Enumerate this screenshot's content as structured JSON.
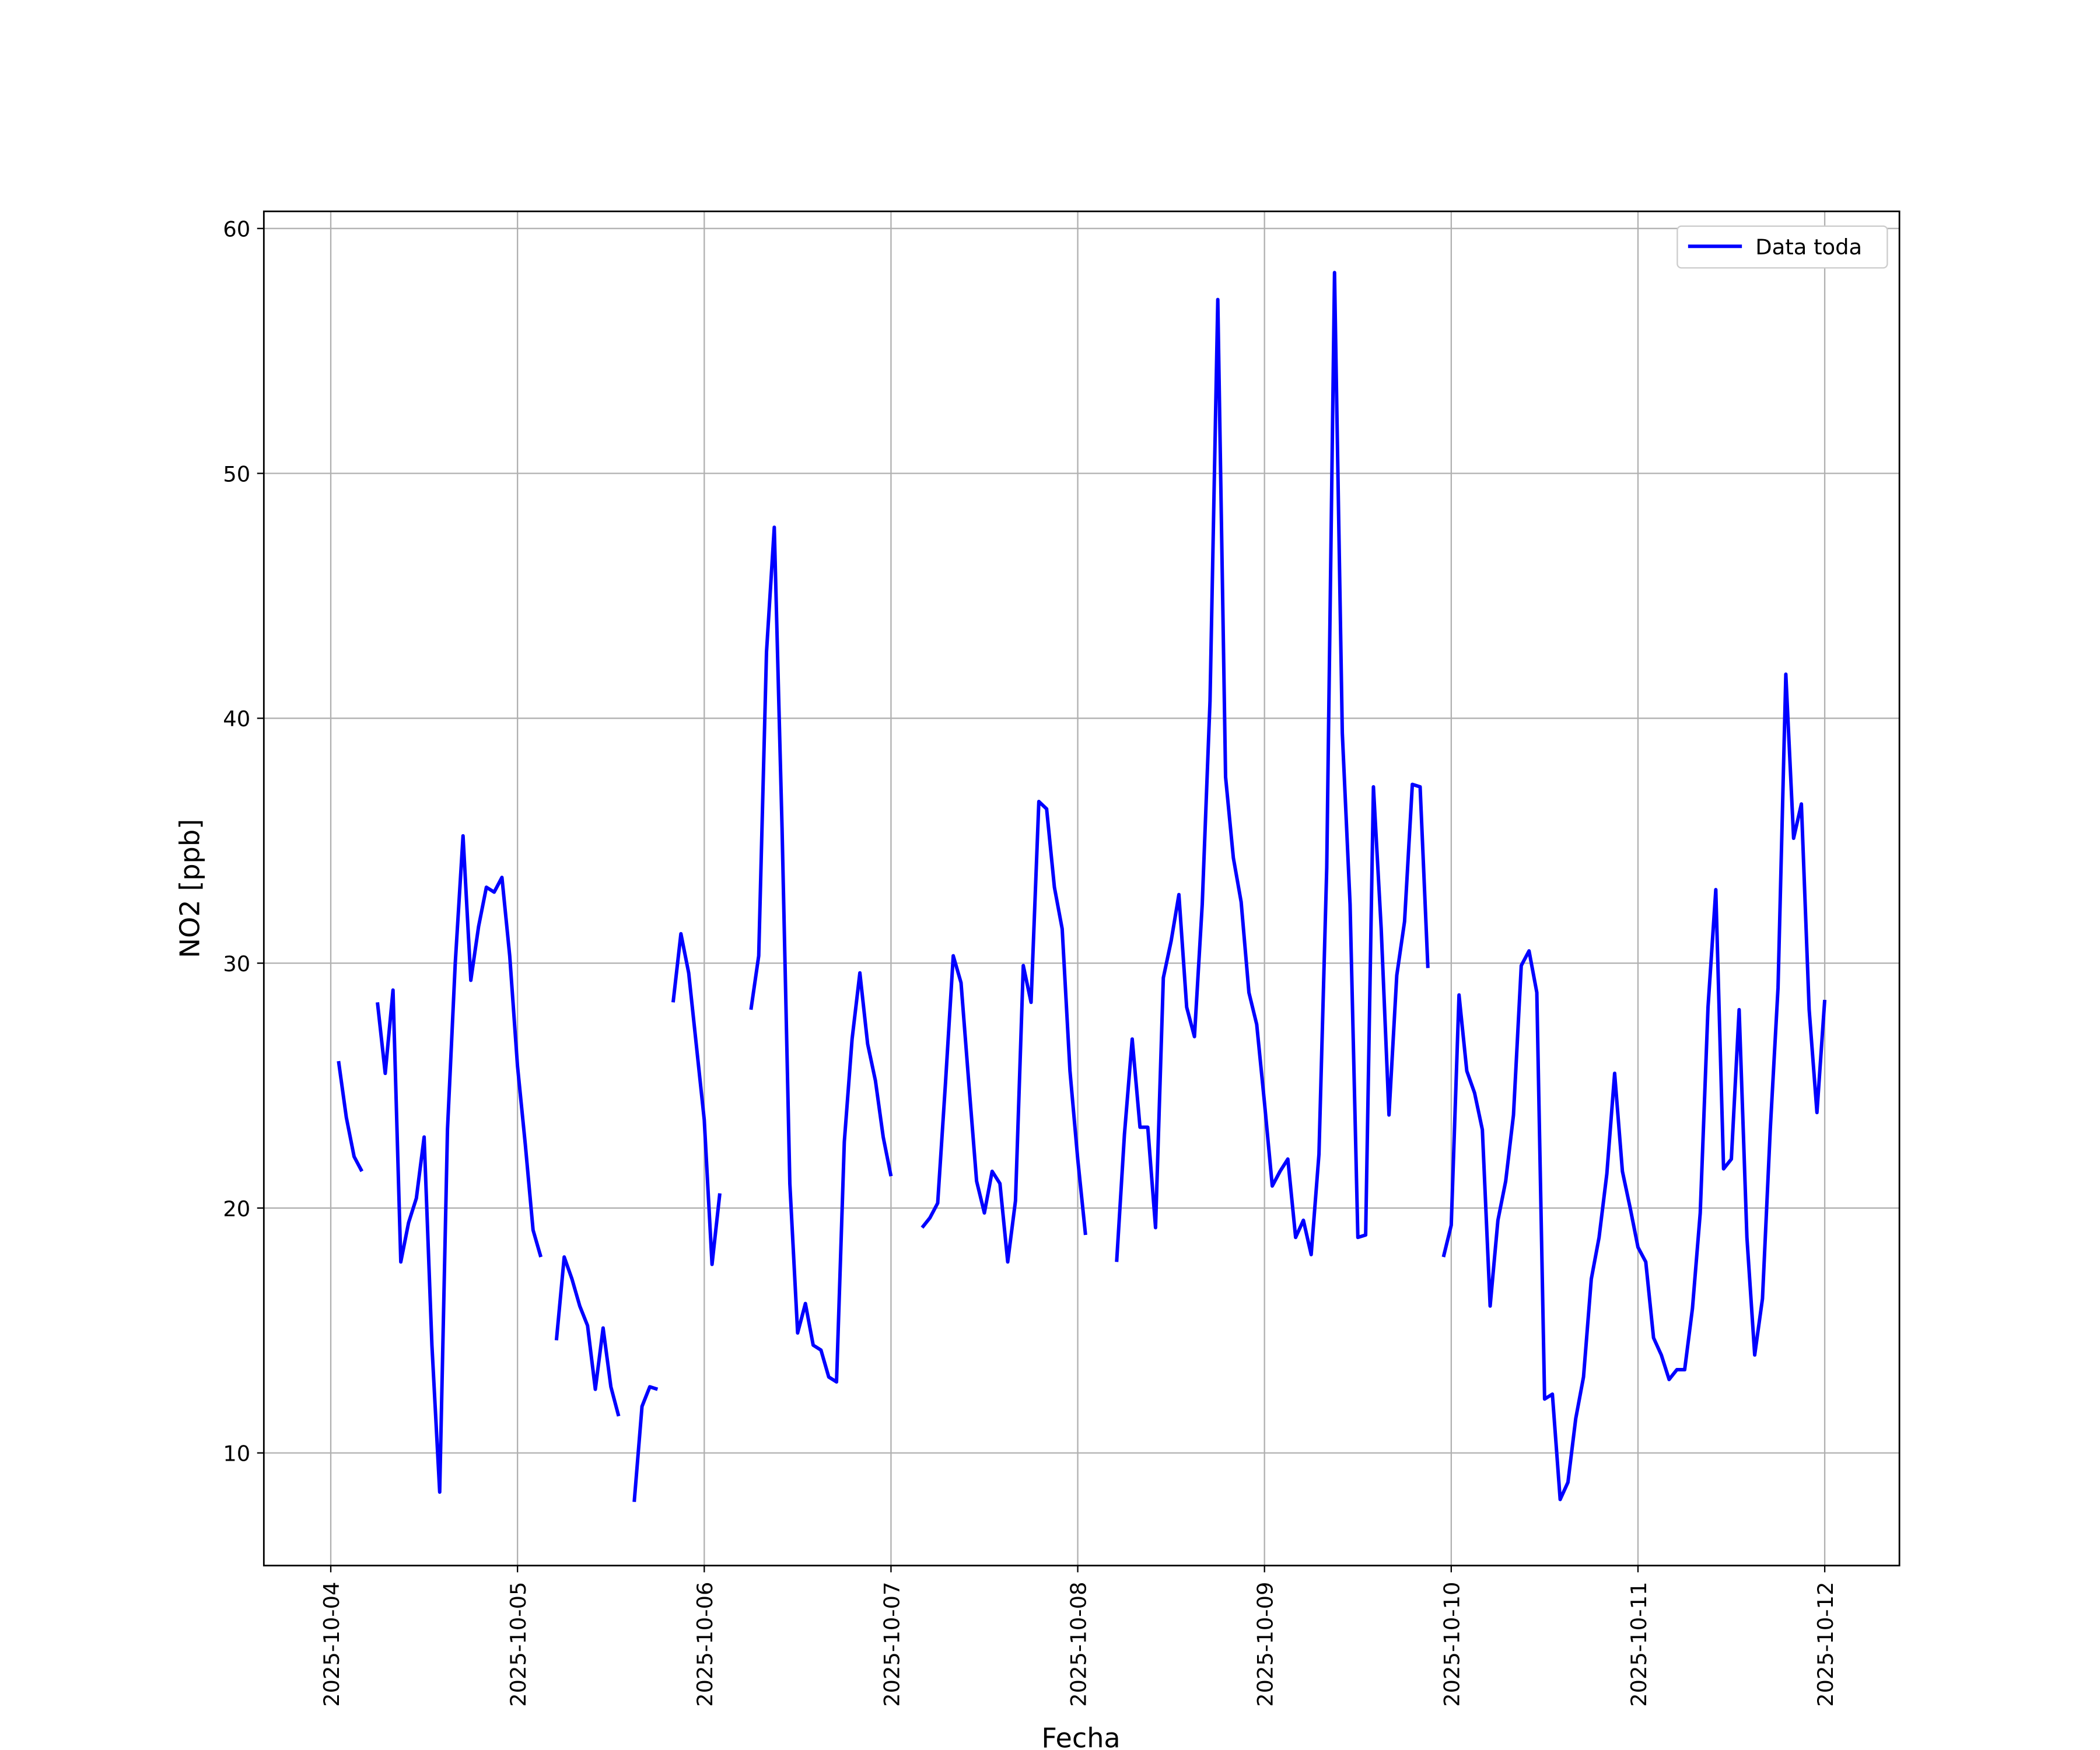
{
  "chart_data": {
    "type": "line",
    "xlabel": "Fecha",
    "ylabel": "NO2 [ppb]",
    "x": [
      1,
      2,
      3,
      4,
      5,
      6,
      7,
      8,
      9,
      10,
      11,
      12,
      13,
      14,
      15,
      16,
      17,
      18,
      19,
      20,
      21,
      22,
      23,
      24,
      25,
      26,
      27,
      28,
      29,
      30,
      31,
      32,
      33,
      34,
      35,
      36,
      37,
      38,
      39,
      40,
      41,
      42,
      43,
      44,
      45,
      46,
      47,
      48,
      49,
      50,
      51,
      52,
      53,
      54,
      55,
      56,
      57,
      58,
      59,
      60,
      61,
      62,
      63,
      64,
      65,
      66,
      67,
      68,
      69,
      70,
      71,
      72,
      73,
      74,
      75,
      76,
      77,
      78,
      79,
      80,
      81,
      82,
      83,
      84,
      85,
      86,
      87,
      88,
      89,
      90,
      91,
      92,
      93,
      94,
      95,
      96,
      97,
      98,
      99,
      100,
      101,
      102,
      103,
      104,
      105,
      106,
      107,
      108,
      109,
      110,
      111,
      112,
      113,
      114,
      115,
      116,
      117,
      118,
      119,
      120,
      121,
      122,
      123,
      124,
      125,
      126,
      127,
      128,
      129,
      130,
      131,
      132,
      133,
      134,
      135,
      136,
      137,
      138,
      139,
      140,
      141,
      142,
      143,
      144,
      145,
      146,
      147,
      148,
      149,
      150,
      151,
      152,
      153,
      154,
      155,
      156,
      157,
      158,
      159,
      160,
      161,
      162,
      163,
      164,
      165,
      166,
      167,
      168,
      169,
      170,
      171,
      172,
      173,
      174,
      175,
      176,
      177,
      178,
      179,
      180,
      181,
      182,
      183,
      184,
      185,
      186,
      187,
      188,
      189,
      190,
      191,
      192
    ],
    "series": [
      {
        "name": "Data toda",
        "color": "#0000ff",
        "values": [
          26.0,
          23.7,
          22.1,
          21.5,
          null,
          28.4,
          25.5,
          28.9,
          17.8,
          19.4,
          20.4,
          22.9,
          14.4,
          8.4,
          23.2,
          30.0,
          35.2,
          29.3,
          31.5,
          33.1,
          32.9,
          33.5,
          30.3,
          25.8,
          22.6,
          19.1,
          18.0,
          null,
          14.6,
          18.0,
          17.1,
          16.0,
          15.2,
          12.6,
          15.1,
          12.7,
          11.5,
          null,
          8.0,
          11.9,
          12.7,
          12.6,
          null,
          28.4,
          31.2,
          29.6,
          26.6,
          23.6,
          17.7,
          20.6,
          null,
          null,
          null,
          28.1,
          30.3,
          42.7,
          47.8,
          35.5,
          21.0,
          14.9,
          16.1,
          14.4,
          14.2,
          13.1,
          12.9,
          22.7,
          26.9,
          29.6,
          26.7,
          25.2,
          22.9,
          21.3,
          null,
          null,
          null,
          19.2,
          19.6,
          20.2,
          25.1,
          30.3,
          29.2,
          25.1,
          21.1,
          19.8,
          21.5,
          21.0,
          17.8,
          20.3,
          29.9,
          28.4,
          36.6,
          36.3,
          33.1,
          31.4,
          25.6,
          22.0,
          18.9,
          null,
          null,
          null,
          17.8,
          23.0,
          26.9,
          23.3,
          23.3,
          19.2,
          29.4,
          30.9,
          32.8,
          28.2,
          27.0,
          32.4,
          40.7,
          57.1,
          37.6,
          34.3,
          32.5,
          28.8,
          27.5,
          24.3,
          20.9,
          21.5,
          22.0,
          18.8,
          19.5,
          18.1,
          22.2,
          33.9,
          58.2,
          39.4,
          32.4,
          18.8,
          18.9,
          37.2,
          31.4,
          23.8,
          29.5,
          31.7,
          37.3,
          37.2,
          29.8,
          null,
          18.0,
          19.3,
          28.7,
          25.6,
          24.7,
          23.2,
          16.0,
          19.5,
          21.1,
          23.8,
          29.9,
          30.5,
          28.8,
          12.2,
          12.4,
          8.1,
          8.8,
          11.4,
          13.1,
          17.1,
          18.8,
          21.4,
          25.5,
          21.5,
          20.0,
          18.4,
          17.8,
          14.7,
          14.0,
          13.0,
          13.4,
          13.4,
          15.9,
          19.8,
          28.2,
          33.0,
          21.6,
          22.0,
          28.1,
          18.8,
          14.0,
          16.3,
          23.2,
          29.0,
          41.8,
          35.1,
          36.5,
          28.1,
          23.9,
          28.5
        ]
      }
    ],
    "xlim": [
      -8.6,
      201.6
    ],
    "xticks": [
      {
        "value": 0,
        "label": "2025-10-04"
      },
      {
        "value": 24,
        "label": "2025-10-05"
      },
      {
        "value": 48,
        "label": "2025-10-06"
      },
      {
        "value": 72,
        "label": "2025-10-07"
      },
      {
        "value": 96,
        "label": "2025-10-08"
      },
      {
        "value": 120,
        "label": "2025-10-09"
      },
      {
        "value": 144,
        "label": "2025-10-10"
      },
      {
        "value": 168,
        "label": "2025-10-11"
      },
      {
        "value": 192,
        "label": "2025-10-12"
      }
    ],
    "ylim": [
      5.4,
      60.7
    ],
    "yticks": [
      10,
      20,
      30,
      40,
      50,
      60
    ],
    "grid": true,
    "legend": "upper right"
  }
}
